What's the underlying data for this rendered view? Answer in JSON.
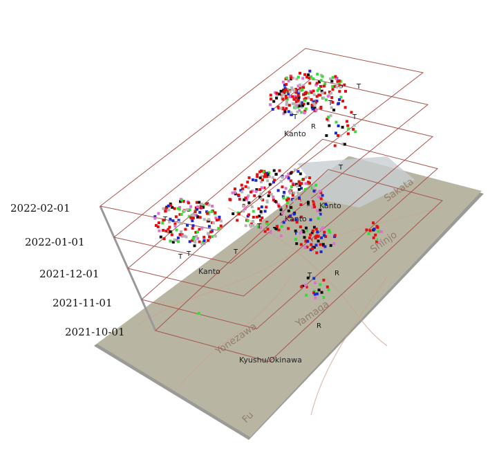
{
  "time_layers": [
    "2022-02-01",
    "2022-01-01",
    "2021-12-01",
    "2021-11-01",
    "2021-10-01"
  ],
  "region_labels": [
    "Kanto",
    "Kanto",
    "Kanto",
    "Kanto",
    "Kyushu/Okinawa"
  ],
  "marker_labels": [
    "T",
    "T",
    "R",
    "T",
    "T",
    "T",
    "R",
    "T",
    "T",
    "T",
    "R",
    "T",
    "T",
    "T"
  ],
  "map_labels": [
    "Sakata",
    "Shinjo",
    "Yamaga",
    "Yonezawa",
    "Fu"
  ]
}
